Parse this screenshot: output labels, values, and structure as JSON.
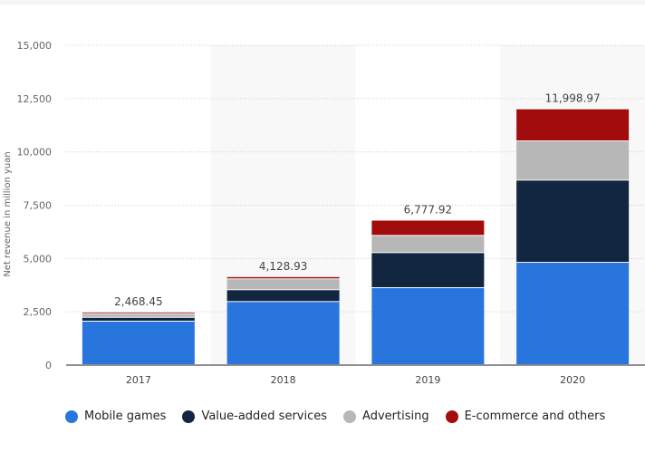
{
  "chart_data": {
    "type": "bar",
    "stacked": true,
    "title": "",
    "xlabel": "",
    "ylabel": "Net revenue in million yuan",
    "ylim": [
      0,
      15000
    ],
    "yticks": [
      0,
      2500,
      5000,
      7500,
      10000,
      12500,
      15000
    ],
    "ytick_labels": [
      "0",
      "2,500",
      "5,000",
      "7,500",
      "10,000",
      "12,500",
      "15,000"
    ],
    "grid": true,
    "legend_position": "bottom-left",
    "categories": [
      "2017",
      "2018",
      "2019",
      "2020"
    ],
    "totals": [
      "2,468.45",
      "4,128.93",
      "6,777.92",
      "11,998.97"
    ],
    "series": [
      {
        "name": "Mobile games",
        "color": "#2876dd",
        "values": [
          2040,
          2960,
          3610,
          4800
        ]
      },
      {
        "name": "Value-added services",
        "color": "#12263f",
        "values": [
          180,
          555,
          1645,
          3855
        ]
      },
      {
        "name": "Advertising",
        "color": "#b7b7b7",
        "values": [
          170,
          510,
          805,
          1840
        ]
      },
      {
        "name": "E-commerce and others",
        "color": "#a30c0c",
        "values": [
          78,
          104,
          718,
          1504
        ]
      }
    ]
  }
}
